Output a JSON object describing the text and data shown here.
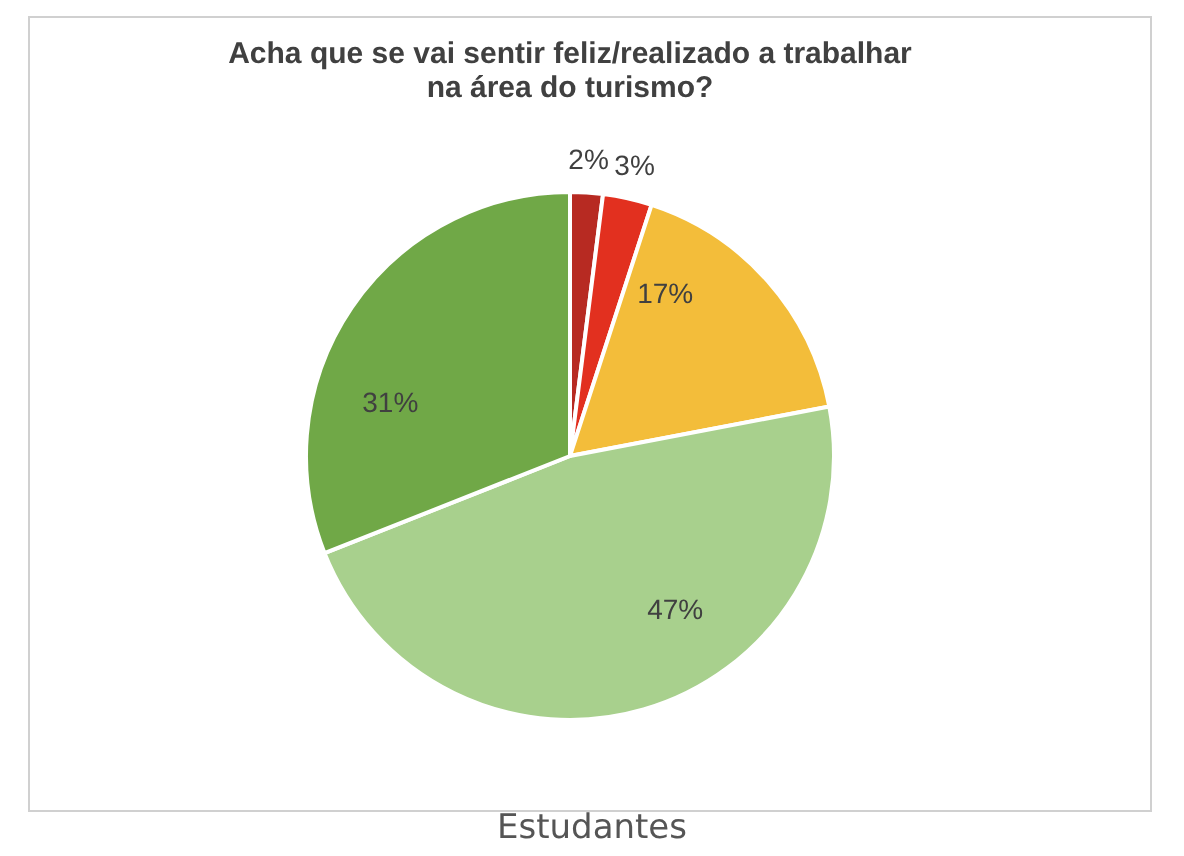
{
  "chart_data": {
    "type": "pie",
    "title": "Acha que se vai sentir feliz/realizado a trabalhar na área do turismo?",
    "categories": [
      null,
      null,
      null,
      null,
      null
    ],
    "values": [
      2,
      3,
      17,
      47,
      31
    ],
    "colors": [
      "#b72a22",
      "#e2301f",
      "#f3bd3a",
      "#a8d08d",
      "#70a847"
    ],
    "value_labels": [
      "2%",
      "3%",
      "17%",
      "47%",
      "31%"
    ],
    "annotations": [
      "Estudantes"
    ]
  }
}
